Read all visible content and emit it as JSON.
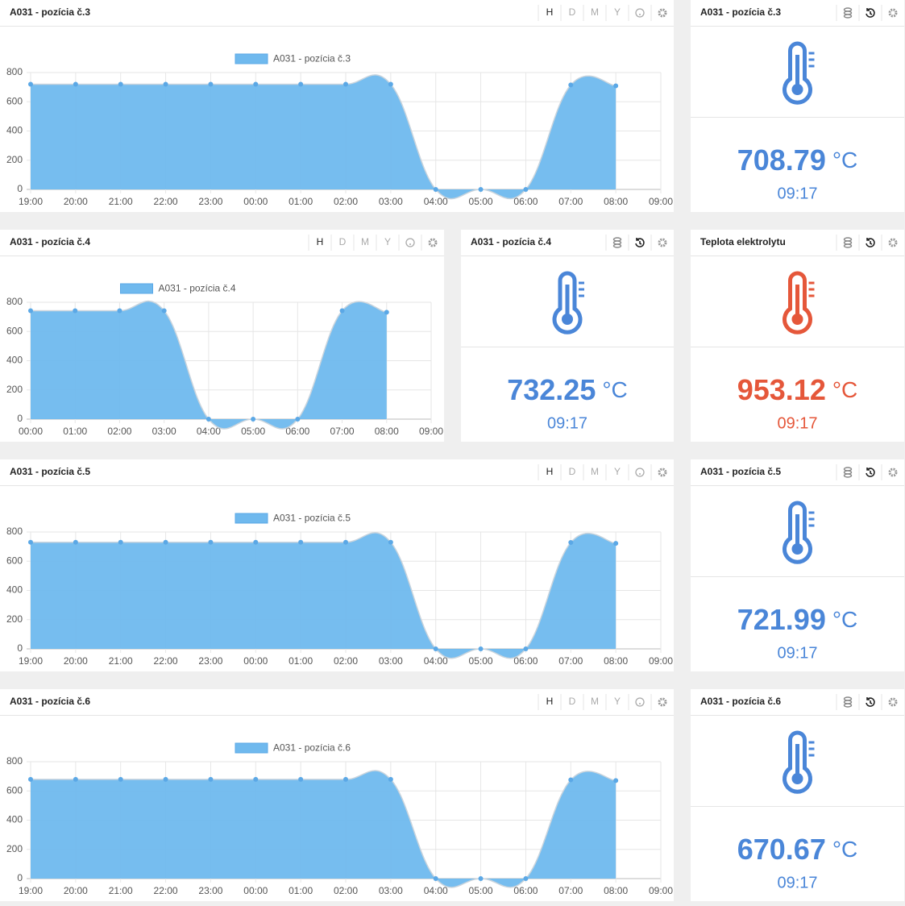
{
  "chart_data": [
    {
      "type": "area",
      "title": "A031 - pozícia č.3",
      "categories": [
        "19:00",
        "20:00",
        "21:00",
        "22:00",
        "23:00",
        "00:00",
        "01:00",
        "02:00",
        "03:00",
        "04:00",
        "05:00",
        "06:00",
        "07:00",
        "08:00",
        "09:00"
      ],
      "series": [
        {
          "name": "A031 - pozícia č.3",
          "color": "#6fb9ee",
          "values": [
            720,
            720,
            720,
            720,
            720,
            720,
            720,
            720,
            720,
            0,
            0,
            0,
            715,
            709,
            null
          ]
        }
      ],
      "ylim": [
        0,
        800
      ],
      "yticks": [
        0,
        200,
        400,
        600,
        800
      ],
      "grid": true,
      "legend": "top"
    },
    {
      "type": "area",
      "title": "A031 - pozícia č.4",
      "categories": [
        "00:00",
        "01:00",
        "02:00",
        "03:00",
        "04:00",
        "05:00",
        "06:00",
        "07:00",
        "08:00",
        "09:00"
      ],
      "series": [
        {
          "name": "A031 - pozícia č.4",
          "color": "#6fb9ee",
          "values": [
            742,
            742,
            742,
            742,
            0,
            0,
            0,
            742,
            732,
            null
          ]
        }
      ],
      "ylim": [
        0,
        800
      ],
      "yticks": [
        0,
        200,
        400,
        600,
        800
      ],
      "grid": true,
      "legend": "top"
    },
    {
      "type": "area",
      "title": "A031 - pozícia č.5",
      "categories": [
        "19:00",
        "20:00",
        "21:00",
        "22:00",
        "23:00",
        "00:00",
        "01:00",
        "02:00",
        "03:00",
        "04:00",
        "05:00",
        "06:00",
        "07:00",
        "08:00",
        "09:00"
      ],
      "series": [
        {
          "name": "A031 - pozícia č.5",
          "color": "#6fb9ee",
          "values": [
            730,
            730,
            730,
            730,
            730,
            730,
            730,
            730,
            730,
            0,
            0,
            0,
            728,
            722,
            null
          ]
        }
      ],
      "ylim": [
        0,
        800
      ],
      "yticks": [
        0,
        200,
        400,
        600,
        800
      ],
      "grid": true,
      "legend": "top"
    },
    {
      "type": "area",
      "title": "A031 - pozícia č.6",
      "categories": [
        "19:00",
        "20:00",
        "21:00",
        "22:00",
        "23:00",
        "00:00",
        "01:00",
        "02:00",
        "03:00",
        "04:00",
        "05:00",
        "06:00",
        "07:00",
        "08:00",
        "09:00"
      ],
      "series": [
        {
          "name": "A031 - pozícia č.6",
          "color": "#6fb9ee",
          "values": [
            679,
            679,
            679,
            679,
            679,
            679,
            679,
            679,
            679,
            0,
            0,
            0,
            676,
            671,
            null
          ]
        }
      ],
      "ylim": [
        0,
        800
      ],
      "yticks": [
        0,
        200,
        400,
        600,
        800
      ],
      "grid": true,
      "legend": "top"
    }
  ],
  "chart_buttons": [
    "H",
    "D",
    "M",
    "Y"
  ],
  "gauges": [
    {
      "title": "A031 - pozícia č.3",
      "value": 708.79,
      "unit": "°C",
      "time": "09:17",
      "color": "#4a86d8"
    },
    {
      "title": "A031 - pozícia č.4",
      "value": 732.25,
      "unit": "°C",
      "time": "09:17",
      "color": "#4a86d8"
    },
    {
      "title": "Teplota elektrolytu",
      "value": 953.12,
      "unit": "°C",
      "time": "09:17",
      "color": "#e5573a"
    },
    {
      "title": "A031 - pozícia č.5",
      "value": 721.99,
      "unit": "°C",
      "time": "09:17",
      "color": "#4a86d8"
    },
    {
      "title": "A031 - pozícia č.6",
      "value": 670.67,
      "unit": "°C",
      "time": "09:17",
      "color": "#4a86d8"
    }
  ]
}
